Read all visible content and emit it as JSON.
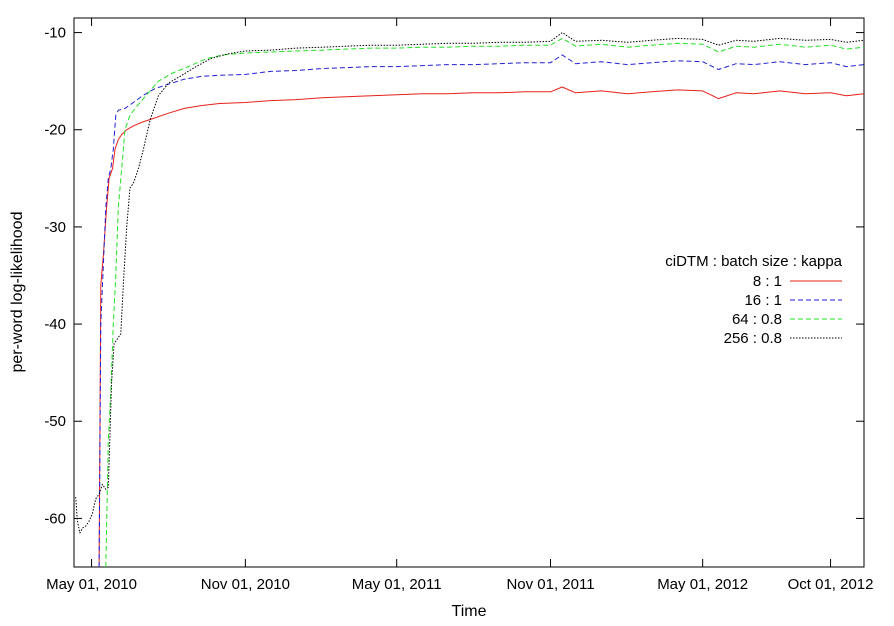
{
  "chart_data": {
    "type": "line",
    "title": "",
    "xlabel": "Time",
    "ylabel": "per-word log-likelihood",
    "x_tick_labels": [
      "May 01, 2010",
      "Nov 01, 2010",
      "May 01, 2011",
      "Nov 01, 2011",
      "May 01, 2012",
      "Oct 01, 2012"
    ],
    "x_tick_dates": [
      "2010-05-01",
      "2010-11-01",
      "2011-05-01",
      "2011-11-01",
      "2012-05-01",
      "2012-10-01"
    ],
    "xlim": [
      "2010-04-10",
      "2012-11-10"
    ],
    "y_ticks": [
      -60,
      -50,
      -40,
      -30,
      -20,
      -10
    ],
    "y_tick_labels": [
      "-60",
      "-50",
      "-40",
      "-30",
      "-20",
      "-10"
    ],
    "ylim": [
      -65,
      -8.5
    ],
    "grid": false,
    "legend": {
      "title": "ciDTM : batch size : kappa",
      "position": "right"
    },
    "series": [
      {
        "name": "8 : 1",
        "color": "#e8201c",
        "dash": "solid",
        "points": [
          [
            "2010-05-10",
            -65
          ],
          [
            "2010-05-12",
            -36
          ],
          [
            "2010-05-15",
            -33
          ],
          [
            "2010-05-19",
            -28
          ],
          [
            "2010-05-22",
            -25
          ],
          [
            "2010-05-26",
            -24
          ],
          [
            "2010-05-29",
            -22
          ],
          [
            "2010-06-02",
            -21
          ],
          [
            "2010-06-06",
            -20.5
          ],
          [
            "2010-06-12",
            -20
          ],
          [
            "2010-06-20",
            -19.6
          ],
          [
            "2010-07-01",
            -19.2
          ],
          [
            "2010-07-15",
            -18.8
          ],
          [
            "2010-08-01",
            -18.3
          ],
          [
            "2010-08-20",
            -17.8
          ],
          [
            "2010-09-10",
            -17.5
          ],
          [
            "2010-10-01",
            -17.3
          ],
          [
            "2010-11-01",
            -17.2
          ],
          [
            "2010-12-01",
            -17.0
          ],
          [
            "2011-01-01",
            -16.9
          ],
          [
            "2011-02-01",
            -16.7
          ],
          [
            "2011-03-01",
            -16.6
          ],
          [
            "2011-04-01",
            -16.5
          ],
          [
            "2011-05-01",
            -16.4
          ],
          [
            "2011-06-01",
            -16.3
          ],
          [
            "2011-07-01",
            -16.3
          ],
          [
            "2011-08-01",
            -16.2
          ],
          [
            "2011-09-01",
            -16.2
          ],
          [
            "2011-10-01",
            -16.1
          ],
          [
            "2011-11-01",
            -16.1
          ],
          [
            "2011-11-15",
            -15.6
          ],
          [
            "2011-12-01",
            -16.2
          ],
          [
            "2012-01-01",
            -16.0
          ],
          [
            "2012-02-01",
            -16.3
          ],
          [
            "2012-03-01",
            -16.1
          ],
          [
            "2012-04-01",
            -15.9
          ],
          [
            "2012-05-01",
            -16.0
          ],
          [
            "2012-05-20",
            -16.8
          ],
          [
            "2012-06-10",
            -16.2
          ],
          [
            "2012-07-01",
            -16.3
          ],
          [
            "2012-08-01",
            -16.0
          ],
          [
            "2012-09-01",
            -16.3
          ],
          [
            "2012-10-01",
            -16.2
          ],
          [
            "2012-10-20",
            -16.5
          ],
          [
            "2012-11-10",
            -16.3
          ]
        ]
      },
      {
        "name": "16 : 1",
        "color": "#1f1fd4",
        "dash": "dashed",
        "points": [
          [
            "2010-05-10",
            -65
          ],
          [
            "2010-05-12",
            -40
          ],
          [
            "2010-05-15",
            -34
          ],
          [
            "2010-05-18",
            -28
          ],
          [
            "2010-05-21",
            -25
          ],
          [
            "2010-05-24",
            -24
          ],
          [
            "2010-05-27",
            -22
          ],
          [
            "2010-05-30",
            -18.5
          ],
          [
            "2010-06-02",
            -18
          ],
          [
            "2010-06-10",
            -17.8
          ],
          [
            "2010-06-20",
            -17.2
          ],
          [
            "2010-07-01",
            -16.5
          ],
          [
            "2010-07-15",
            -15.8
          ],
          [
            "2010-08-01",
            -15.3
          ],
          [
            "2010-08-20",
            -14.8
          ],
          [
            "2010-09-10",
            -14.5
          ],
          [
            "2010-10-01",
            -14.4
          ],
          [
            "2010-11-01",
            -14.3
          ],
          [
            "2010-12-01",
            -14.0
          ],
          [
            "2011-01-01",
            -13.9
          ],
          [
            "2011-02-01",
            -13.7
          ],
          [
            "2011-03-01",
            -13.6
          ],
          [
            "2011-04-01",
            -13.5
          ],
          [
            "2011-05-01",
            -13.5
          ],
          [
            "2011-06-01",
            -13.4
          ],
          [
            "2011-07-01",
            -13.3
          ],
          [
            "2011-08-01",
            -13.3
          ],
          [
            "2011-09-01",
            -13.2
          ],
          [
            "2011-10-01",
            -13.1
          ],
          [
            "2011-11-01",
            -13.1
          ],
          [
            "2011-11-15",
            -12.3
          ],
          [
            "2011-12-01",
            -13.2
          ],
          [
            "2012-01-01",
            -13.0
          ],
          [
            "2012-02-01",
            -13.3
          ],
          [
            "2012-03-01",
            -13.1
          ],
          [
            "2012-04-01",
            -12.9
          ],
          [
            "2012-05-01",
            -13.0
          ],
          [
            "2012-05-20",
            -13.8
          ],
          [
            "2012-06-10",
            -13.2
          ],
          [
            "2012-07-01",
            -13.3
          ],
          [
            "2012-08-01",
            -13.0
          ],
          [
            "2012-09-01",
            -13.3
          ],
          [
            "2012-10-01",
            -13.1
          ],
          [
            "2012-10-20",
            -13.5
          ],
          [
            "2012-11-10",
            -13.3
          ]
        ]
      },
      {
        "name": "64 : 0.8",
        "color": "#22e022",
        "dash": "dashed",
        "points": [
          [
            "2010-05-18",
            -65
          ],
          [
            "2010-05-21",
            -52
          ],
          [
            "2010-05-24",
            -47
          ],
          [
            "2010-05-27",
            -40
          ],
          [
            "2010-05-30",
            -35
          ],
          [
            "2010-06-02",
            -28
          ],
          [
            "2010-06-06",
            -24
          ],
          [
            "2010-06-10",
            -20
          ],
          [
            "2010-06-16",
            -18.5
          ],
          [
            "2010-06-25",
            -17.5
          ],
          [
            "2010-07-05",
            -16.5
          ],
          [
            "2010-07-20",
            -15
          ],
          [
            "2010-08-05",
            -14.2
          ],
          [
            "2010-08-25",
            -13.5
          ],
          [
            "2010-09-15",
            -12.7
          ],
          [
            "2010-10-05",
            -12.3
          ],
          [
            "2010-11-01",
            -12.1
          ],
          [
            "2010-12-01",
            -12.0
          ],
          [
            "2011-01-01",
            -11.9
          ],
          [
            "2011-02-01",
            -11.8
          ],
          [
            "2011-03-01",
            -11.7
          ],
          [
            "2011-04-01",
            -11.6
          ],
          [
            "2011-05-01",
            -11.6
          ],
          [
            "2011-06-01",
            -11.5
          ],
          [
            "2011-07-01",
            -11.5
          ],
          [
            "2011-08-01",
            -11.4
          ],
          [
            "2011-09-01",
            -11.4
          ],
          [
            "2011-10-01",
            -11.3
          ],
          [
            "2011-11-01",
            -11.3
          ],
          [
            "2011-11-15",
            -10.6
          ],
          [
            "2011-12-01",
            -11.4
          ],
          [
            "2012-01-01",
            -11.2
          ],
          [
            "2012-02-01",
            -11.5
          ],
          [
            "2012-03-01",
            -11.3
          ],
          [
            "2012-04-01",
            -11.1
          ],
          [
            "2012-05-01",
            -11.2
          ],
          [
            "2012-05-20",
            -12.0
          ],
          [
            "2012-06-10",
            -11.4
          ],
          [
            "2012-07-01",
            -11.5
          ],
          [
            "2012-08-01",
            -11.2
          ],
          [
            "2012-09-01",
            -11.5
          ],
          [
            "2012-10-01",
            -11.3
          ],
          [
            "2012-10-20",
            -11.7
          ],
          [
            "2012-11-10",
            -11.5
          ]
        ]
      },
      {
        "name": "256 : 0.8",
        "color": "#000000",
        "dash": "dotted",
        "points": [
          [
            "2010-04-12",
            -57.8
          ],
          [
            "2010-04-14",
            -60.2
          ],
          [
            "2010-04-17",
            -61.5
          ],
          [
            "2010-04-20",
            -61.0
          ],
          [
            "2010-04-24",
            -60.8
          ],
          [
            "2010-04-28",
            -60.3
          ],
          [
            "2010-05-02",
            -59.5
          ],
          [
            "2010-05-06",
            -58.0
          ],
          [
            "2010-05-10",
            -57.5
          ],
          [
            "2010-05-14",
            -56.5
          ],
          [
            "2010-05-18",
            -57.0
          ],
          [
            "2010-05-21",
            -56.8
          ],
          [
            "2010-05-25",
            -46
          ],
          [
            "2010-05-28",
            -42
          ],
          [
            "2010-06-01",
            -41.5
          ],
          [
            "2010-06-05",
            -41
          ],
          [
            "2010-06-08",
            -36
          ],
          [
            "2010-06-12",
            -30
          ],
          [
            "2010-06-16",
            -26
          ],
          [
            "2010-06-20",
            -25.5
          ],
          [
            "2010-06-26",
            -24
          ],
          [
            "2010-07-02",
            -22
          ],
          [
            "2010-07-10",
            -19
          ],
          [
            "2010-07-20",
            -16.5
          ],
          [
            "2010-08-01",
            -15.2
          ],
          [
            "2010-08-15",
            -14.5
          ],
          [
            "2010-09-01",
            -13.6
          ],
          [
            "2010-09-20",
            -12.7
          ],
          [
            "2010-10-10",
            -12.2
          ],
          [
            "2010-11-01",
            -11.9
          ],
          [
            "2010-12-01",
            -11.8
          ],
          [
            "2011-01-01",
            -11.6
          ],
          [
            "2011-02-01",
            -11.5
          ],
          [
            "2011-03-01",
            -11.4
          ],
          [
            "2011-04-01",
            -11.3
          ],
          [
            "2011-05-01",
            -11.3
          ],
          [
            "2011-06-01",
            -11.2
          ],
          [
            "2011-07-01",
            -11.1
          ],
          [
            "2011-08-01",
            -11.1
          ],
          [
            "2011-09-01",
            -11.0
          ],
          [
            "2011-10-01",
            -11.0
          ],
          [
            "2011-11-01",
            -10.9
          ],
          [
            "2011-11-15",
            -10.0
          ],
          [
            "2011-12-01",
            -10.9
          ],
          [
            "2012-01-01",
            -10.8
          ],
          [
            "2012-02-01",
            -11.0
          ],
          [
            "2012-03-01",
            -10.8
          ],
          [
            "2012-04-01",
            -10.6
          ],
          [
            "2012-05-01",
            -10.7
          ],
          [
            "2012-05-20",
            -11.3
          ],
          [
            "2012-06-10",
            -10.8
          ],
          [
            "2012-07-01",
            -10.9
          ],
          [
            "2012-08-01",
            -10.6
          ],
          [
            "2012-09-01",
            -10.8
          ],
          [
            "2012-10-01",
            -10.7
          ],
          [
            "2012-10-20",
            -11.0
          ],
          [
            "2012-11-10",
            -10.8
          ]
        ]
      }
    ]
  }
}
